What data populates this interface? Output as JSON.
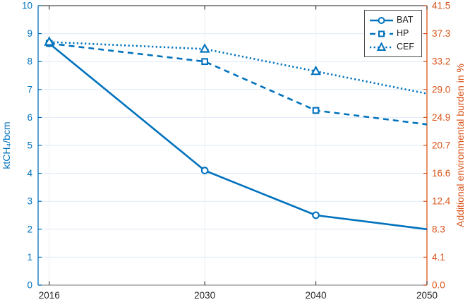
{
  "chart_data": {
    "type": "line",
    "x": [
      2016,
      2030,
      2040,
      2050
    ],
    "series": [
      {
        "name": "BAT",
        "values": [
          8.65,
          4.1,
          2.5,
          2.0
        ],
        "line_style": "solid",
        "marker": "circle"
      },
      {
        "name": "HP",
        "values": [
          8.65,
          8.0,
          6.25,
          5.75
        ],
        "line_style": "dashed",
        "marker": "square"
      },
      {
        "name": "CEF",
        "values": [
          8.7,
          8.45,
          7.65,
          6.85
        ],
        "line_style": "dotted",
        "marker": "triangle"
      }
    ],
    "title": "",
    "xlabel": "",
    "ylabel_left": "ktCH₄/bcm",
    "ylabel_right": "Additional environmental burden in %",
    "xlim": [
      2015,
      2050
    ],
    "ylim_left": [
      0,
      10
    ],
    "ylim_right": [
      0,
      41.5
    ],
    "x_tick_values": [
      2016,
      2030,
      2040,
      2050
    ],
    "x_ticks": [
      "2016",
      "2030",
      "2040",
      "2050"
    ],
    "y_tick_values_left": [
      0,
      1,
      2,
      3,
      4,
      5,
      6,
      7,
      8,
      9,
      10
    ],
    "y_ticks_left": [
      "0",
      "1",
      "2",
      "3",
      "4",
      "5",
      "6",
      "7",
      "8",
      "9",
      "10"
    ],
    "y_ticks_right": [
      "0.0",
      "4.1",
      "8.3",
      "12.4",
      "16.6",
      "20.7",
      "24.9",
      "29.0",
      "33.2",
      "37.3",
      "41.5"
    ],
    "grid": true,
    "legend": {
      "position": "top-right",
      "entries": [
        "BAT",
        "HP",
        "CEF"
      ]
    },
    "colors": {
      "series_blue": "#0072bd",
      "left_axis": "#0072bd",
      "right_axis": "#d95319",
      "x_tick_text": "#262626",
      "top_spine": "#4b4b4b",
      "bottom_spine": "#8f8f8f",
      "tick_mark": "#404040",
      "grid_h": "#dfe9f7",
      "grid_v": "#eef1f6",
      "legend_border": "#4d4d4d",
      "background": "#ffffff"
    }
  }
}
